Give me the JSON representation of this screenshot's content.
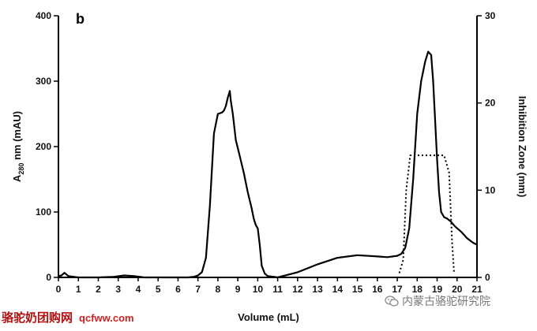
{
  "chart_data": {
    "type": "line",
    "panel_label": "b",
    "xlabel": "Volume (mL)",
    "ylabel_left": "A280 nm (mAU)",
    "ylabel_left_main": "A",
    "ylabel_left_sub": "280",
    "ylabel_left_rest": " nm (mAU)",
    "ylabel_right": "Inhibition Zone (mm)",
    "xlim": [
      0,
      21
    ],
    "ylim_left": [
      0,
      400
    ],
    "ylim_right": [
      0,
      30
    ],
    "x_ticks": [
      "0",
      "1",
      "2",
      "3",
      "4",
      "5",
      "6",
      "7",
      "8",
      "9",
      "10",
      "11",
      "12",
      "13",
      "14",
      "15",
      "16",
      "17",
      "18",
      "19",
      "20",
      "21"
    ],
    "y_left_ticks": [
      "0",
      "100",
      "200",
      "300",
      "400"
    ],
    "y_right_ticks": [
      "0",
      "10",
      "20",
      "30"
    ],
    "series": [
      {
        "axis": "left",
        "style": "solid",
        "x": [
          0,
          0.15,
          0.3,
          0.5,
          1,
          2,
          2.8,
          3.3,
          3.8,
          4.3,
          5,
          6,
          6.5,
          6.8,
          7.0,
          7.2,
          7.4,
          7.6,
          7.8,
          8.0,
          8.2,
          8.3,
          8.4,
          8.5,
          8.6,
          8.65,
          8.75,
          8.9,
          9.1,
          9.3,
          9.5,
          9.7,
          9.8,
          9.9,
          10.0,
          10.1,
          10.2,
          10.35,
          10.5,
          10.8,
          11,
          12,
          13,
          14,
          15,
          16,
          16.5,
          17,
          17.2,
          17.4,
          17.6,
          17.8,
          18.0,
          18.2,
          18.4,
          18.55,
          18.7,
          18.8,
          18.9,
          19.0,
          19.1,
          19.2,
          19.35,
          19.5,
          19.7,
          19.9,
          20.2,
          20.5,
          20.8,
          21.0
        ],
        "y": [
          2,
          3,
          7,
          2,
          0,
          0,
          1,
          3,
          2,
          0,
          0,
          0,
          0,
          1,
          3,
          8,
          30,
          110,
          220,
          250,
          252,
          255,
          262,
          275,
          285,
          270,
          250,
          210,
          185,
          160,
          130,
          105,
          90,
          80,
          75,
          50,
          18,
          6,
          2,
          1,
          0,
          8,
          20,
          30,
          34,
          32,
          31,
          33,
          36,
          45,
          75,
          150,
          250,
          300,
          330,
          345,
          340,
          300,
          240,
          180,
          130,
          100,
          92,
          90,
          85,
          78,
          70,
          60,
          53,
          50
        ]
      },
      {
        "axis": "right",
        "style": "dotted",
        "x": [
          17.1,
          17.3,
          17.45,
          17.65,
          19.35,
          19.6,
          19.75,
          19.85
        ],
        "y": [
          0.5,
          2,
          10,
          14,
          14,
          12,
          4,
          0.5
        ]
      }
    ]
  },
  "watermark": {
    "left_text": "骆驼奶团购网",
    "left_url": "qcfww.com",
    "right_text": "内蒙古骆驼研究院",
    "icon": "wechat-icon"
  }
}
